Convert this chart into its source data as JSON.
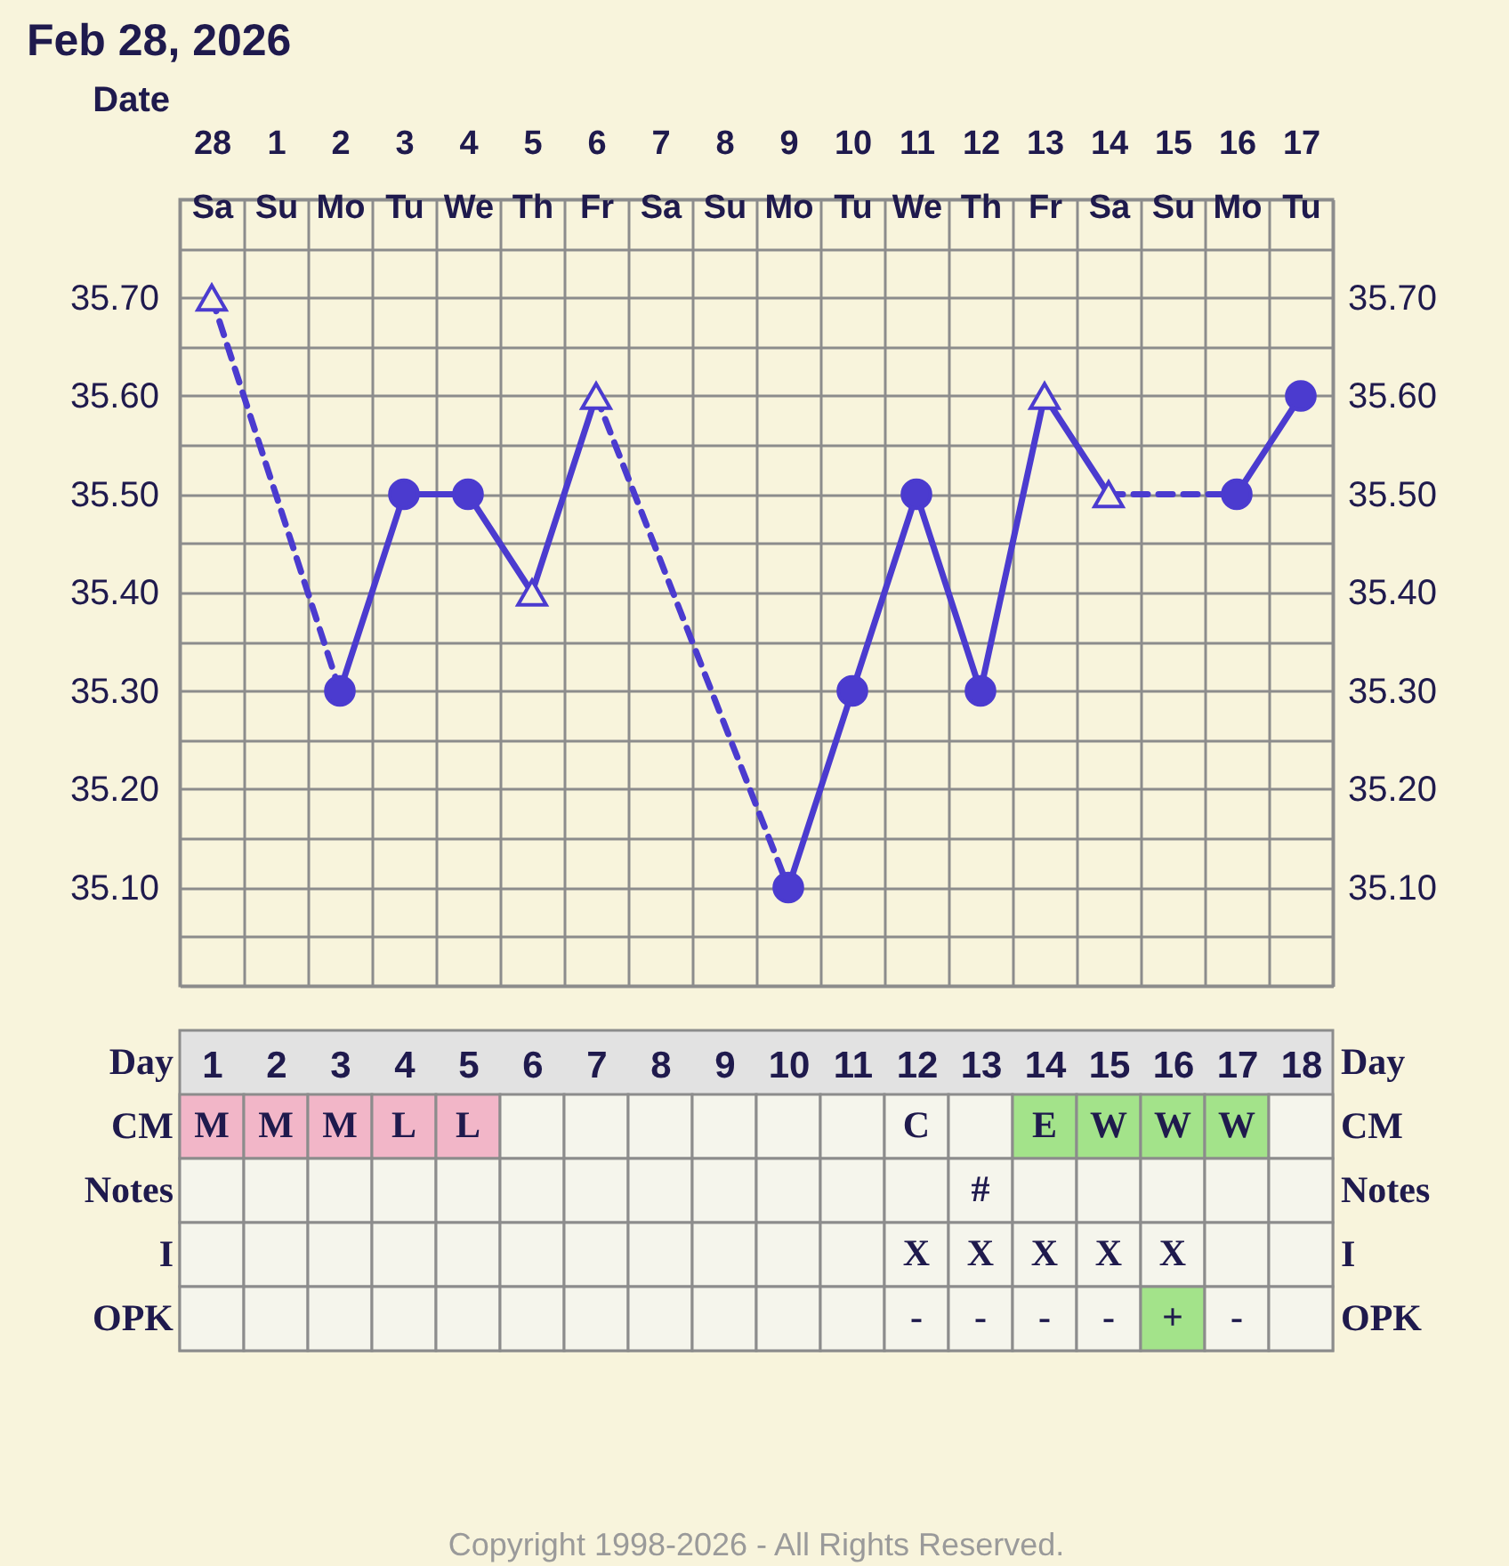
{
  "chart_data": [
    {
      "type": "line",
      "title": "Feb 28, 2026",
      "xlabel": "Date",
      "categories": [
        "28\nSa",
        "1\nSu",
        "2\nMo",
        "3\nTu",
        "4\nWe",
        "5\nTh",
        "6\nFr",
        "7\nSa",
        "8\nSu",
        "9\nMo",
        "10\nTu",
        "11\nWe",
        "12\nTh",
        "13\nFr",
        "14\nSa",
        "15\nSu",
        "16\nMo",
        "17\nTu"
      ],
      "series": [
        {
          "type": "line",
          "line_style": "solid",
          "color": "#4b3bcf",
          "values": [
            null,
            null,
            35.3,
            35.5,
            35.5,
            35.4,
            35.6,
            null,
            null,
            null,
            null,
            null,
            null,
            null,
            null,
            null,
            null,
            null
          ]
        },
        {
          "type": "line",
          "line_style": "solid",
          "color": "#4b3bcf",
          "values": [
            null,
            null,
            null,
            null,
            null,
            null,
            null,
            null,
            null,
            35.1,
            35.3,
            35.5,
            35.3,
            35.6,
            35.5,
            null,
            null,
            null
          ]
        },
        {
          "type": "line",
          "line_style": "solid",
          "color": "#4b3bcf",
          "values": [
            null,
            null,
            null,
            null,
            null,
            null,
            null,
            null,
            null,
            null,
            null,
            null,
            null,
            null,
            null,
            null,
            35.5,
            35.6
          ]
        },
        {
          "type": "line",
          "line_style": "dashed",
          "color": "#4b3bcf",
          "values": [
            35.7,
            null,
            35.3,
            null,
            null,
            null,
            null,
            null,
            null,
            null,
            null,
            null,
            null,
            null,
            null,
            null,
            null,
            null
          ]
        },
        {
          "type": "line",
          "line_style": "dashed",
          "color": "#4b3bcf",
          "values": [
            null,
            null,
            null,
            null,
            null,
            null,
            35.6,
            null,
            null,
            35.1,
            null,
            null,
            null,
            null,
            null,
            null,
            null,
            null
          ]
        },
        {
          "type": "line",
          "line_style": "dashed",
          "color": "#4b3bcf",
          "values": [
            null,
            null,
            null,
            null,
            null,
            null,
            null,
            null,
            null,
            null,
            null,
            null,
            null,
            null,
            35.5,
            null,
            35.5,
            null
          ]
        },
        {
          "type": "scatter",
          "marker": "circle",
          "color": "#4b3bcf",
          "values": [
            null,
            null,
            35.3,
            35.5,
            35.5,
            null,
            null,
            null,
            null,
            35.1,
            35.3,
            35.5,
            35.3,
            null,
            null,
            null,
            35.5,
            35.6
          ]
        },
        {
          "type": "scatter",
          "marker": "triangle",
          "color": "#4b3bcf",
          "values": [
            35.7,
            null,
            null,
            null,
            null,
            35.4,
            35.6,
            null,
            null,
            null,
            null,
            null,
            null,
            35.6,
            35.5,
            null,
            null,
            null
          ]
        }
      ],
      "ylim": [
        35.0,
        35.8
      ],
      "yticks": [
        {
          "value": 35.0,
          "label": null
        },
        {
          "value": 35.05,
          "label": null
        },
        {
          "value": 35.1,
          "label": "35.10"
        },
        {
          "value": 35.15,
          "label": null
        },
        {
          "value": 35.2,
          "label": "35.20"
        },
        {
          "value": 35.25,
          "label": null
        },
        {
          "value": 35.3,
          "label": "35.30"
        },
        {
          "value": 35.35,
          "label": null
        },
        {
          "value": 35.4,
          "label": "35.40"
        },
        {
          "value": 35.45,
          "label": null
        },
        {
          "value": 35.5,
          "label": "35.50"
        },
        {
          "value": 35.55,
          "label": null
        },
        {
          "value": 35.6,
          "label": "35.60"
        },
        {
          "value": 35.65,
          "label": null
        },
        {
          "value": 35.7,
          "label": "35.70"
        },
        {
          "value": 35.75,
          "label": null
        },
        {
          "value": 35.8,
          "label": null
        }
      ],
      "y2lim": [
        35.0,
        35.8
      ],
      "y2ticks": [
        {
          "value": 35.0,
          "label": null
        },
        {
          "value": 35.05,
          "label": null
        },
        {
          "value": 35.1,
          "label": "35.10"
        },
        {
          "value": 35.15,
          "label": null
        },
        {
          "value": 35.2,
          "label": "35.20"
        },
        {
          "value": 35.25,
          "label": null
        },
        {
          "value": 35.3,
          "label": "35.30"
        },
        {
          "value": 35.35,
          "label": null
        },
        {
          "value": 35.4,
          "label": "35.40"
        },
        {
          "value": 35.45,
          "label": null
        },
        {
          "value": 35.5,
          "label": "35.50"
        },
        {
          "value": 35.55,
          "label": null
        },
        {
          "value": 35.6,
          "label": "35.60"
        },
        {
          "value": 35.65,
          "label": null
        },
        {
          "value": 35.7,
          "label": "35.70"
        },
        {
          "value": 35.75,
          "label": null
        },
        {
          "value": 35.8,
          "label": null
        }
      ],
      "grid": true
    },
    {
      "type": "heatmap",
      "xlabel": "Day",
      "xlim": [
        0.5,
        18.5
      ],
      "xticks": [
        1,
        2,
        3,
        4,
        5,
        6,
        7,
        8,
        9,
        10,
        11,
        12,
        13,
        14,
        15,
        16,
        17,
        18
      ],
      "cells": [
        [
          null,
          null,
          null,
          null,
          null,
          null,
          null,
          null,
          null,
          null,
          null,
          null,
          null,
          null,
          null,
          null,
          null,
          null
        ],
        [
          null,
          null,
          null,
          null,
          null,
          null,
          null,
          null,
          null,
          null,
          null,
          null,
          null,
          null,
          null,
          null,
          null,
          null
        ],
        [
          null,
          null,
          null,
          null,
          null,
          null,
          null,
          null,
          null,
          null,
          null,
          null,
          null,
          null,
          null,
          null,
          null,
          null
        ],
        [
          null,
          null,
          null,
          null,
          null,
          null,
          null,
          null,
          null,
          null,
          null,
          null,
          null,
          null,
          null,
          null,
          null,
          null
        ]
      ],
      "y_categories": [
        "CM",
        "Notes",
        "I",
        "OPK"
      ],
      "y2_categories": [
        "CM",
        "Notes",
        "I",
        "OPK"
      ],
      "cell_labels": [
        [
          "M",
          "M",
          "M",
          "L",
          "L",
          null,
          null,
          null,
          null,
          null,
          null,
          "C",
          null,
          "E",
          "W",
          "W",
          "W",
          null
        ],
        [
          null,
          null,
          null,
          null,
          null,
          null,
          null,
          null,
          null,
          null,
          null,
          null,
          "#",
          null,
          null,
          null,
          null,
          null
        ],
        [
          null,
          null,
          null,
          null,
          null,
          null,
          null,
          null,
          null,
          null,
          null,
          "X",
          "X",
          "X",
          "X",
          "X",
          null,
          null
        ],
        [
          null,
          null,
          null,
          null,
          null,
          null,
          null,
          null,
          null,
          null,
          null,
          "-",
          "-",
          "-",
          "-",
          "+",
          "-",
          null
        ]
      ],
      "colors": [
        [
          "#f2b6c8",
          "#f2b6c8",
          "#f2b6c8",
          "#f2b6c8",
          "#f2b6c8",
          null,
          null,
          null,
          null,
          null,
          null,
          null,
          null,
          "#a3e38a",
          "#a3e38a",
          "#a3e38a",
          "#a3e38a",
          null
        ],
        [
          null,
          null,
          null,
          null,
          null,
          null,
          null,
          null,
          null,
          null,
          null,
          null,
          null,
          null,
          null,
          null,
          null,
          null
        ],
        [
          null,
          null,
          null,
          null,
          null,
          null,
          null,
          null,
          null,
          null,
          null,
          null,
          null,
          null,
          null,
          null,
          null,
          null
        ],
        [
          null,
          null,
          null,
          null,
          null,
          null,
          null,
          null,
          null,
          null,
          null,
          null,
          null,
          null,
          null,
          "#a3e38a",
          null,
          null
        ]
      ],
      "annotations": [
        "Copyright 1998-2026 - All Rights Reserved."
      ]
    }
  ]
}
